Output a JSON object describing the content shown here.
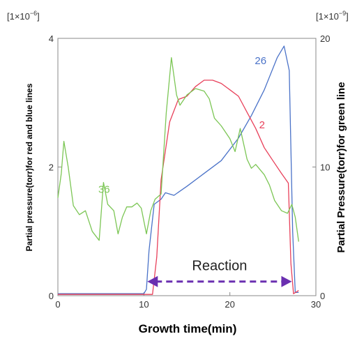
{
  "chart_data": {
    "type": "line",
    "xlabel": "Growth time(min)",
    "ylabel_left": "Partial pressure(torr)for red and blue lines",
    "ylabel_right": "Partial Pressure(torr)for green line",
    "left_multiplier": {
      "base": "[1×10",
      "exp": "−6",
      "close": "]"
    },
    "right_multiplier": {
      "base": "[1×10",
      "exp": "−9",
      "close": "]"
    },
    "xlim": [
      0,
      30
    ],
    "ylim_left": [
      0,
      4
    ],
    "ylim_right": [
      0,
      20
    ],
    "x_ticks": [
      "0",
      "10",
      "20",
      "30"
    ],
    "y_ticks_left": [
      "0",
      "2",
      "4"
    ],
    "y_ticks_right": [
      "0",
      "10",
      "20"
    ],
    "grid": false,
    "series": [
      {
        "name": "26",
        "axis": "left",
        "color": "#4a72c8",
        "points": [
          [
            0,
            0.03
          ],
          [
            10,
            0.03
          ],
          [
            10.3,
            0.1
          ],
          [
            10.6,
            0.7
          ],
          [
            11.2,
            1.42
          ],
          [
            12,
            1.5
          ],
          [
            12.5,
            1.6
          ],
          [
            13.5,
            1.56
          ],
          [
            15,
            1.7
          ],
          [
            17,
            1.9
          ],
          [
            19,
            2.1
          ],
          [
            21,
            2.45
          ],
          [
            22.5,
            2.8
          ],
          [
            24,
            3.2
          ],
          [
            25.5,
            3.7
          ],
          [
            26.3,
            3.88
          ],
          [
            26.9,
            3.5
          ],
          [
            27.3,
            1.0
          ],
          [
            27.6,
            0.05
          ],
          [
            28,
            0.05
          ]
        ]
      },
      {
        "name": "2",
        "axis": "left",
        "color": "#e8405a",
        "points": [
          [
            0,
            0.02
          ],
          [
            11,
            0.02
          ],
          [
            11.5,
            0.6
          ],
          [
            12,
            1.8
          ],
          [
            13,
            2.7
          ],
          [
            14,
            3.05
          ],
          [
            15,
            3.1
          ],
          [
            16,
            3.25
          ],
          [
            17,
            3.35
          ],
          [
            18,
            3.35
          ],
          [
            19,
            3.3
          ],
          [
            20,
            3.2
          ],
          [
            21,
            3.1
          ],
          [
            22,
            2.85
          ],
          [
            23,
            2.6
          ],
          [
            24,
            2.3
          ],
          [
            25,
            2.1
          ],
          [
            26,
            1.9
          ],
          [
            26.8,
            1.75
          ],
          [
            27.1,
            0.5
          ],
          [
            27.4,
            0.03
          ],
          [
            28,
            0.08
          ]
        ]
      },
      {
        "name": "36",
        "axis": "right",
        "color": "#7cc655",
        "points": [
          [
            0,
            7.6
          ],
          [
            0.4,
            9.5
          ],
          [
            0.7,
            12
          ],
          [
            1.2,
            10
          ],
          [
            1.8,
            7
          ],
          [
            2.5,
            6.3
          ],
          [
            3.2,
            6.6
          ],
          [
            4,
            5
          ],
          [
            4.8,
            4.3
          ],
          [
            5.3,
            8.8
          ],
          [
            5.8,
            7.1
          ],
          [
            6.5,
            6.6
          ],
          [
            7,
            4.8
          ],
          [
            7.5,
            6.1
          ],
          [
            8,
            6.9
          ],
          [
            8.6,
            6.9
          ],
          [
            9.2,
            7.2
          ],
          [
            9.7,
            6.8
          ],
          [
            10.3,
            4.8
          ],
          [
            10.8,
            6.6
          ],
          [
            11.3,
            7.5
          ],
          [
            12,
            7.9
          ],
          [
            12.6,
            14.2
          ],
          [
            13.2,
            18.5
          ],
          [
            13.8,
            15.6
          ],
          [
            14.2,
            14.8
          ],
          [
            15,
            15.6
          ],
          [
            16,
            16.1
          ],
          [
            17,
            15.9
          ],
          [
            17.6,
            15.3
          ],
          [
            18.2,
            13.8
          ],
          [
            19,
            13.2
          ],
          [
            20,
            12.2
          ],
          [
            20.6,
            11.2
          ],
          [
            21.2,
            13
          ],
          [
            22,
            10.6
          ],
          [
            22.5,
            9.9
          ],
          [
            23,
            10.2
          ],
          [
            24,
            9.4
          ],
          [
            24.6,
            8.6
          ],
          [
            25.2,
            7.4
          ],
          [
            26,
            6.6
          ],
          [
            26.7,
            6.4
          ],
          [
            27.2,
            7.1
          ],
          [
            27.6,
            6.1
          ],
          [
            28,
            4.2
          ]
        ]
      }
    ],
    "labels": [
      {
        "text": "26",
        "x": 22.9,
        "y": 3.6,
        "axis": "left",
        "color": "#4a72c8"
      },
      {
        "text": "2",
        "x": 23.4,
        "y": 2.6,
        "axis": "left",
        "color": "#e8405a"
      },
      {
        "text": "36",
        "x": 4.7,
        "y": 8.0,
        "axis": "right",
        "color": "#7cc655"
      }
    ],
    "annotation": {
      "text": "Reaction",
      "x_start": 10.4,
      "x_end": 27.2,
      "y": 0.22,
      "color": "#6a2fb0"
    }
  }
}
